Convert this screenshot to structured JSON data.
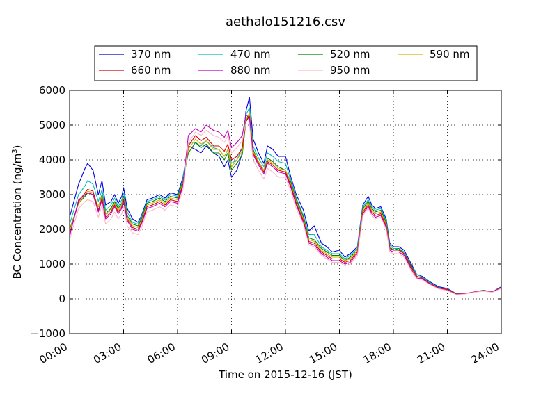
{
  "chart_data": {
    "type": "line",
    "title": "aethalo151216.csv",
    "xlabel": "Time on 2015-12-16 (JST)",
    "ylabel": "BC Concentration (ng/m",
    "ylabel_sup": "3",
    "ylabel_suffix": ")",
    "xlim": [
      0,
      24
    ],
    "ylim": [
      -1000,
      6000
    ],
    "grid": true,
    "legend_location": "top-center",
    "xticks": [
      0,
      3,
      6,
      9,
      12,
      15,
      18,
      21,
      24
    ],
    "xtick_labels": [
      "00:00",
      "03:00",
      "06:00",
      "09:00",
      "12:00",
      "15:00",
      "18:00",
      "21:00",
      "24:00"
    ],
    "yticks": [
      -1000,
      0,
      1000,
      2000,
      3000,
      4000,
      5000,
      6000
    ],
    "ytick_labels": [
      "−1000",
      "0",
      "1000",
      "2000",
      "3000",
      "4000",
      "5000",
      "6000"
    ],
    "x": [
      0,
      0.5,
      0.85,
      1,
      1.3,
      1.6,
      1.8,
      2.0,
      2.3,
      2.5,
      2.7,
      2.9,
      3.0,
      3.2,
      3.5,
      3.8,
      4.0,
      4.3,
      4.6,
      5.0,
      5.3,
      5.6,
      6.0,
      6.3,
      6.6,
      7.0,
      7.3,
      7.6,
      8.0,
      8.3,
      8.6,
      8.8,
      9.0,
      9.3,
      9.6,
      9.8,
      10.0,
      10.2,
      10.5,
      10.8,
      11.0,
      11.3,
      11.6,
      12.0,
      12.3,
      12.6,
      13.0,
      13.3,
      13.6,
      14.0,
      14.3,
      14.6,
      15.0,
      15.3,
      15.6,
      16.0,
      16.3,
      16.6,
      16.8,
      17.0,
      17.3,
      17.6,
      17.8,
      18.0,
      18.3,
      18.6,
      19.0,
      19.3,
      19.6,
      20.0,
      20.5,
      21.0,
      21.5,
      22.0,
      22.5,
      23.0,
      23.5,
      24.0
    ],
    "series": [
      {
        "name": "370 nm",
        "color": "#0000dd",
        "values": [
          2350,
          3300,
          3750,
          3900,
          3700,
          3000,
          3400,
          2700,
          2800,
          3000,
          2750,
          2950,
          3200,
          2600,
          2300,
          2200,
          2400,
          2850,
          2900,
          3000,
          2900,
          3050,
          3000,
          3500,
          4400,
          4300,
          4200,
          4400,
          4200,
          4100,
          3800,
          4000,
          3500,
          3700,
          4200,
          5400,
          5800,
          4600,
          4200,
          3900,
          4400,
          4300,
          4100,
          4100,
          3500,
          3000,
          2550,
          1950,
          2100,
          1600,
          1500,
          1350,
          1400,
          1200,
          1300,
          1500,
          2700,
          2950,
          2700,
          2600,
          2650,
          2300,
          1600,
          1500,
          1500,
          1400,
          1000,
          700,
          650,
          500,
          350,
          300,
          150,
          150,
          200,
          250,
          200,
          350
        ]
      },
      {
        "name": "470 nm",
        "color": "#00bcbc",
        "values": [
          2150,
          3000,
          3250,
          3400,
          3300,
          2800,
          3150,
          2550,
          2700,
          2900,
          2650,
          2850,
          3050,
          2500,
          2200,
          2150,
          2350,
          2800,
          2850,
          2950,
          2850,
          3000,
          2950,
          3450,
          4500,
          4500,
          4400,
          4550,
          4350,
          4300,
          4100,
          4300,
          3900,
          4000,
          4350,
          5300,
          5500,
          4400,
          4050,
          3800,
          4200,
          4100,
          3950,
          3900,
          3400,
          2900,
          2400,
          1850,
          1850,
          1500,
          1400,
          1300,
          1300,
          1150,
          1250,
          1450,
          2650,
          2850,
          2650,
          2550,
          2600,
          2250,
          1550,
          1450,
          1450,
          1350,
          950,
          700,
          630,
          480,
          330,
          280,
          150,
          150,
          200,
          250,
          200,
          330
        ]
      },
      {
        "name": "520 nm",
        "color": "#008000",
        "values": [
          2000,
          2750,
          2950,
          3050,
          3000,
          2650,
          3000,
          2450,
          2600,
          2800,
          2600,
          2750,
          2950,
          2400,
          2150,
          2100,
          2300,
          2750,
          2800,
          2900,
          2800,
          2950,
          2900,
          3400,
          4200,
          4500,
          4350,
          4450,
          4200,
          4200,
          4000,
          4200,
          3700,
          3900,
          4150,
          5100,
          5300,
          4300,
          3950,
          3700,
          4050,
          3950,
          3800,
          3700,
          3350,
          2850,
          2350,
          1750,
          1700,
          1450,
          1350,
          1250,
          1250,
          1100,
          1200,
          1400,
          2600,
          2800,
          2600,
          2500,
          2550,
          2200,
          1500,
          1400,
          1450,
          1300,
          950,
          650,
          600,
          450,
          320,
          270,
          140,
          150,
          200,
          240,
          200,
          320
        ]
      },
      {
        "name": "590 nm",
        "color": "#d4b000",
        "values": [
          1950,
          2750,
          3000,
          3100,
          3050,
          2650,
          2950,
          2400,
          2550,
          2750,
          2550,
          2700,
          2900,
          2350,
          2100,
          2050,
          2250,
          2700,
          2750,
          2850,
          2750,
          2900,
          2850,
          3350,
          4300,
          4600,
          4450,
          4550,
          4300,
          4300,
          4100,
          4300,
          3800,
          4000,
          4250,
          5150,
          5350,
          4250,
          3950,
          3700,
          4000,
          3900,
          3750,
          3700,
          3300,
          2800,
          2300,
          1700,
          1650,
          1400,
          1300,
          1200,
          1200,
          1100,
          1150,
          1400,
          2550,
          2750,
          2550,
          2450,
          2500,
          2150,
          1450,
          1400,
          1400,
          1300,
          900,
          650,
          600,
          450,
          320,
          270,
          140,
          150,
          200,
          240,
          200,
          320
        ]
      },
      {
        "name": "660 nm",
        "color": "#dd0000",
        "values": [
          1850,
          2800,
          3050,
          3150,
          3100,
          2550,
          2900,
          2350,
          2500,
          2700,
          2500,
          2650,
          2850,
          2300,
          2050,
          2000,
          2200,
          2650,
          2700,
          2800,
          2700,
          2850,
          2800,
          3300,
          4400,
          4700,
          4550,
          4650,
          4400,
          4400,
          4250,
          4450,
          4000,
          4100,
          4350,
          5100,
          5250,
          4200,
          3900,
          3650,
          3950,
          3850,
          3700,
          3650,
          3250,
          2750,
          2250,
          1650,
          1600,
          1350,
          1250,
          1150,
          1150,
          1050,
          1100,
          1350,
          2500,
          2700,
          2500,
          2400,
          2450,
          2100,
          1450,
          1400,
          1400,
          1300,
          900,
          650,
          600,
          450,
          320,
          270,
          140,
          150,
          200,
          240,
          200,
          320
        ]
      },
      {
        "name": "880 nm",
        "color": "#c000c0",
        "values": [
          1800,
          2850,
          3000,
          3050,
          3000,
          2500,
          2850,
          2300,
          2450,
          2650,
          2450,
          2600,
          2800,
          2250,
          2000,
          1950,
          2150,
          2600,
          2650,
          2750,
          2650,
          2800,
          2750,
          3250,
          4700,
          4900,
          4800,
          5000,
          4850,
          4800,
          4650,
          4850,
          4350,
          4500,
          4700,
          5300,
          5200,
          4150,
          3850,
          3600,
          3900,
          3800,
          3650,
          3600,
          3200,
          2700,
          2200,
          1600,
          1550,
          1300,
          1200,
          1100,
          1100,
          1000,
          1050,
          1300,
          2450,
          2650,
          2450,
          2350,
          2400,
          2050,
          1400,
          1350,
          1350,
          1250,
          850,
          600,
          580,
          430,
          300,
          250,
          130,
          150,
          200,
          230,
          200,
          310
        ]
      },
      {
        "name": "950 nm",
        "color": "#ffb6c1",
        "values": [
          1700,
          2600,
          2800,
          2850,
          2800,
          2350,
          2700,
          2150,
          2300,
          2500,
          2300,
          2450,
          2650,
          2100,
          1900,
          1850,
          2050,
          2500,
          2550,
          2650,
          2550,
          2700,
          2650,
          3150,
          4500,
          4800,
          4700,
          4850,
          4700,
          4650,
          4500,
          4700,
          4200,
          4350,
          4550,
          5050,
          5000,
          4000,
          3700,
          3450,
          3750,
          3650,
          3500,
          3500,
          3100,
          2600,
          2150,
          1550,
          1500,
          1250,
          1150,
          1050,
          1050,
          950,
          1000,
          1250,
          2400,
          2600,
          2400,
          2300,
          2350,
          2000,
          1350,
          1300,
          1300,
          1200,
          800,
          580,
          550,
          420,
          290,
          240,
          120,
          140,
          190,
          220,
          190,
          300
        ]
      }
    ]
  }
}
